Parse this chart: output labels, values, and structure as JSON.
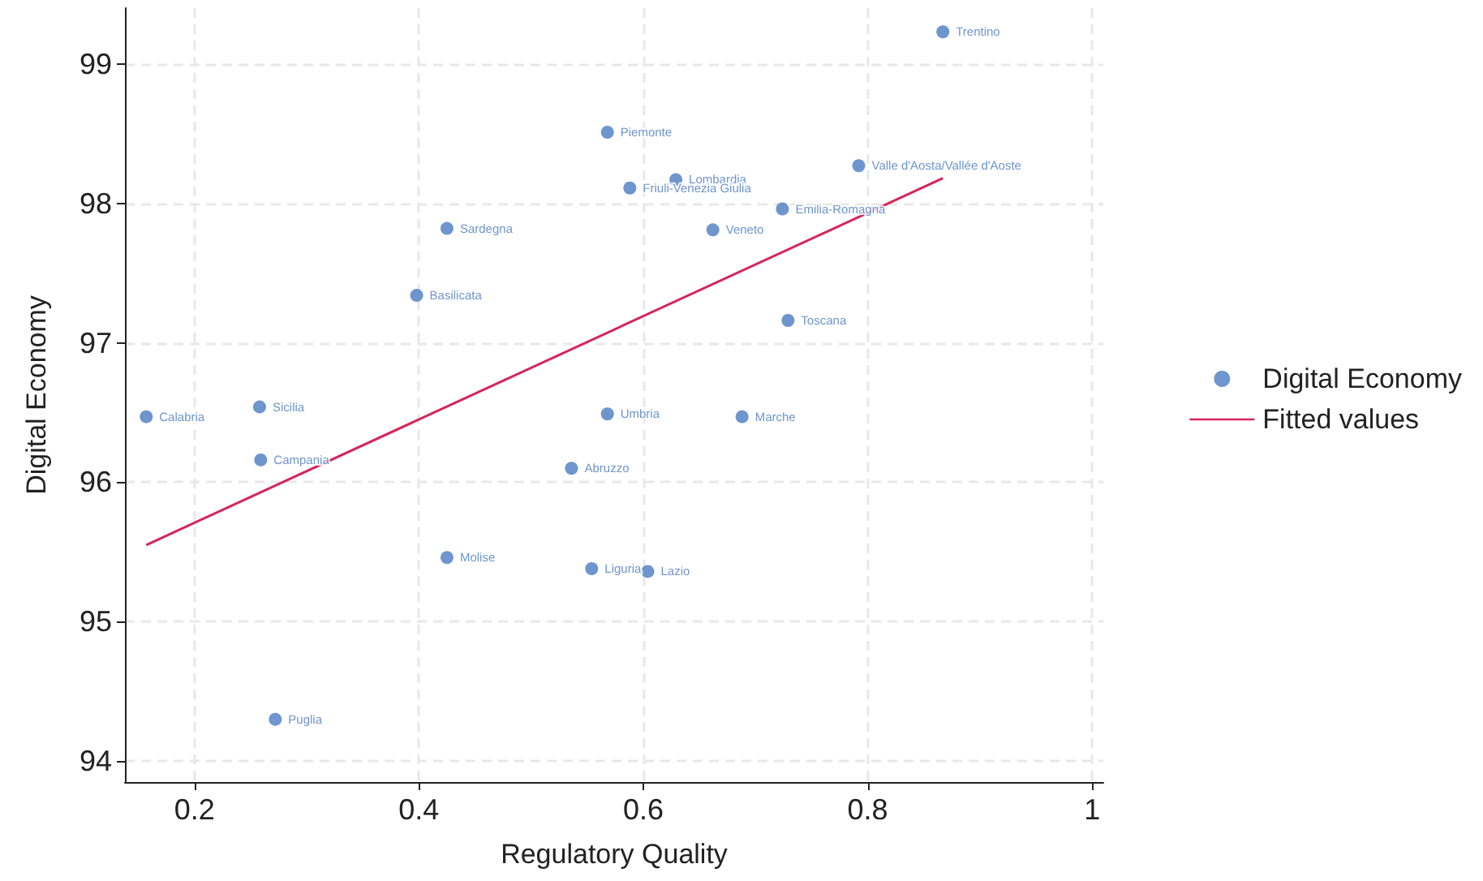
{
  "chart_data": {
    "type": "scatter",
    "xlabel": "Regulatory Quality",
    "ylabel": "Digital Economy",
    "xlim": [
      0.138,
      1.01
    ],
    "ylim": [
      93.85,
      99.4
    ],
    "xticks": [
      0.2,
      0.4,
      0.6,
      0.8,
      {
        "value": 1,
        "label": "1"
      }
    ],
    "yticks": [
      94,
      95,
      96,
      97,
      98,
      99
    ],
    "grid": true,
    "legend": "right",
    "marker": "circle",
    "series": [
      {
        "name": "Digital Economy",
        "color": "#4a7ac0",
        "x": [
          0.867,
          0.568,
          0.629,
          0.588,
          0.792,
          0.724,
          0.662,
          0.425,
          0.398,
          0.729,
          0.258,
          0.157,
          0.568,
          0.688,
          0.259,
          0.536,
          0.425,
          0.554,
          0.604,
          0.272
        ],
        "values": [
          99.23,
          98.51,
          98.17,
          98.11,
          98.27,
          97.96,
          97.81,
          97.82,
          97.34,
          97.16,
          96.54,
          96.47,
          96.49,
          96.47,
          96.16,
          96.1,
          95.46,
          95.38,
          95.36,
          94.3
        ],
        "value_labels": [
          "Trentino",
          "Piemonte",
          "Lombardia",
          "Friuli-Venezia Giulia",
          "Valle d'Aosta/Vallée d'Aoste",
          "Emilia-Romagna",
          "Veneto",
          "Sardegna",
          "Basilicata",
          "Toscana",
          "Sicilia",
          "Calabria",
          "Umbria",
          "Marche",
          "Campania",
          "Abruzzo",
          "Molise",
          "Liguria",
          "Lazio",
          "Puglia"
        ]
      },
      {
        "name": "Fitted values",
        "type": "line",
        "marker": "none",
        "color": "#d6245a",
        "x": [
          0.157,
          0.867
        ],
        "values": [
          95.55,
          98.18
        ]
      }
    ]
  }
}
